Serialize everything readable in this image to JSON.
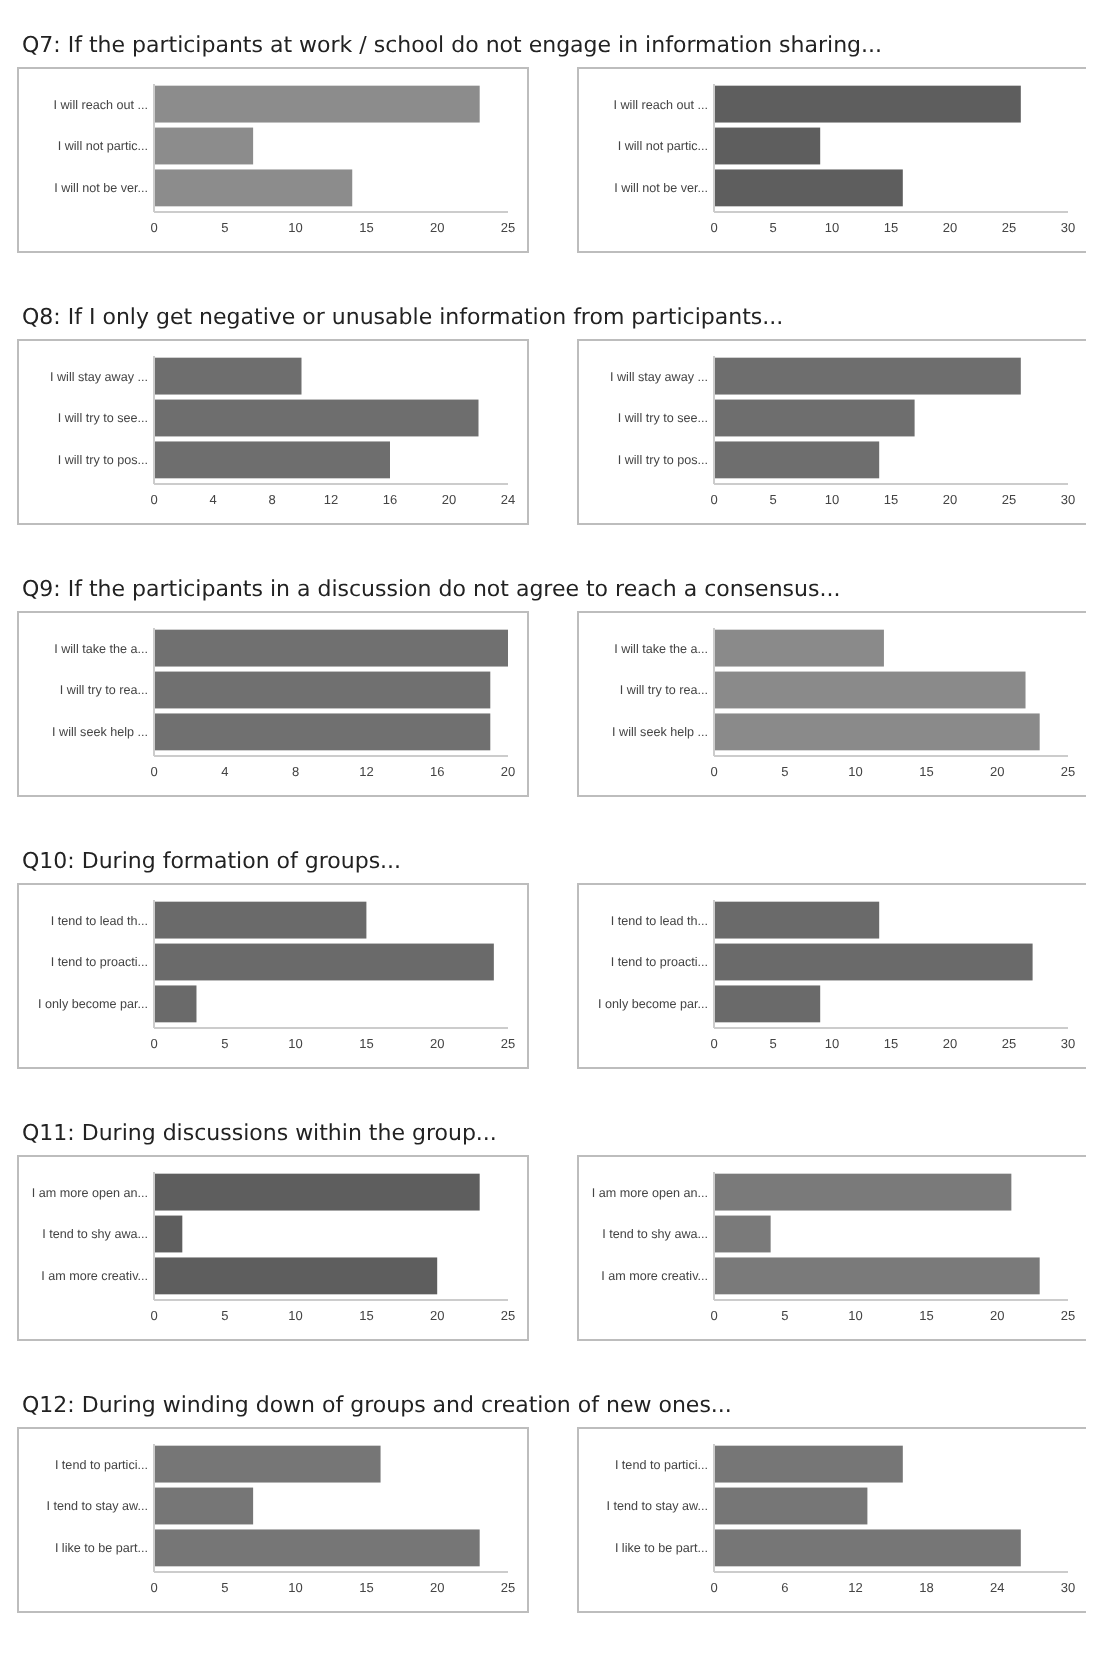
{
  "chart_data": [
    {
      "type": "bar",
      "orientation": "horizontal",
      "title": "Q7: If the participants at work / school do not engage in information sharing...",
      "categories": [
        "I will reach out ...",
        "I will not partic...",
        "I will not be ver..."
      ],
      "values": [
        23,
        7,
        14
      ],
      "color": "#8c8c8c",
      "xlim": [
        0,
        25
      ],
      "xticks": [
        0,
        5,
        10,
        15,
        20,
        25
      ]
    },
    {
      "type": "bar",
      "orientation": "horizontal",
      "categories": [
        "I will reach out ...",
        "I will not partic...",
        "I will not be ver..."
      ],
      "values": [
        26,
        9,
        16
      ],
      "color": "#5e5e5e",
      "xlim": [
        0,
        30
      ],
      "xticks": [
        0,
        5,
        10,
        15,
        20,
        25,
        30
      ]
    },
    {
      "type": "bar",
      "orientation": "horizontal",
      "title": "Q8: If I only get negative or unusable information from participants...",
      "categories": [
        "I will stay away ...",
        "I will try to see...",
        "I will try to pos..."
      ],
      "values": [
        10,
        22,
        16
      ],
      "color": "#6e6e6e",
      "xlim": [
        0,
        24
      ],
      "xticks": [
        0,
        4,
        8,
        12,
        16,
        20,
        24
      ]
    },
    {
      "type": "bar",
      "orientation": "horizontal",
      "categories": [
        "I will stay away ...",
        "I will try to see...",
        "I will try to pos..."
      ],
      "values": [
        26,
        17,
        14
      ],
      "color": "#6e6e6e",
      "xlim": [
        0,
        30
      ],
      "xticks": [
        0,
        5,
        10,
        15,
        20,
        25,
        30
      ]
    },
    {
      "type": "bar",
      "orientation": "horizontal",
      "title": "Q9: If the participants in a discussion do not agree to reach a consensus...",
      "categories": [
        "I will take the a...",
        "I will try to rea...",
        "I will seek help ..."
      ],
      "values": [
        20,
        19,
        19
      ],
      "color": "#707070",
      "xlim": [
        0,
        20
      ],
      "xticks": [
        0,
        4,
        8,
        12,
        16,
        20
      ]
    },
    {
      "type": "bar",
      "orientation": "horizontal",
      "categories": [
        "I will take the a...",
        "I will try to rea...",
        "I will seek help ..."
      ],
      "values": [
        12,
        22,
        23
      ],
      "color": "#8a8a8a",
      "xlim": [
        0,
        25
      ],
      "xticks": [
        0,
        5,
        10,
        15,
        20,
        25
      ]
    },
    {
      "type": "bar",
      "orientation": "horizontal",
      "title": "Q10: During formation of groups...",
      "categories": [
        "I tend to lead th...",
        "I tend to proacti...",
        "I only become par..."
      ],
      "values": [
        15,
        24,
        3
      ],
      "color": "#6a6a6a",
      "xlim": [
        0,
        25
      ],
      "xticks": [
        0,
        5,
        10,
        15,
        20,
        25
      ]
    },
    {
      "type": "bar",
      "orientation": "horizontal",
      "categories": [
        "I tend to lead th...",
        "I tend to proacti...",
        "I only become par..."
      ],
      "values": [
        14,
        27,
        9
      ],
      "color": "#6a6a6a",
      "xlim": [
        0,
        30
      ],
      "xticks": [
        0,
        5,
        10,
        15,
        20,
        25,
        30
      ]
    },
    {
      "type": "bar",
      "orientation": "horizontal",
      "title": "Q11: During discussions within the group...",
      "categories": [
        "I am more open an...",
        "I tend to shy awa...",
        "I am more creativ..."
      ],
      "values": [
        23,
        2,
        20
      ],
      "color": "#5e5e5e",
      "xlim": [
        0,
        25
      ],
      "xticks": [
        0,
        5,
        10,
        15,
        20,
        25
      ]
    },
    {
      "type": "bar",
      "orientation": "horizontal",
      "categories": [
        "I am more open an...",
        "I tend to shy awa...",
        "I am more creativ..."
      ],
      "values": [
        21,
        4,
        23
      ],
      "color": "#7a7a7a",
      "xlim": [
        0,
        25
      ],
      "xticks": [
        0,
        5,
        10,
        15,
        20,
        25
      ]
    },
    {
      "type": "bar",
      "orientation": "horizontal",
      "title": "Q12: During winding down of groups and creation of new ones...",
      "categories": [
        "I tend to partici...",
        "I tend to stay aw...",
        "I like to be part..."
      ],
      "values": [
        16,
        7,
        23
      ],
      "color": "#767676",
      "xlim": [
        0,
        25
      ],
      "xticks": [
        0,
        5,
        10,
        15,
        20,
        25
      ]
    },
    {
      "type": "bar",
      "orientation": "horizontal",
      "categories": [
        "I tend to partici...",
        "I tend to stay aw...",
        "I like to be part..."
      ],
      "values": [
        16,
        13,
        26
      ],
      "color": "#767676",
      "xlim": [
        0,
        30
      ],
      "xticks": [
        0,
        6,
        12,
        18,
        24,
        30
      ]
    }
  ]
}
